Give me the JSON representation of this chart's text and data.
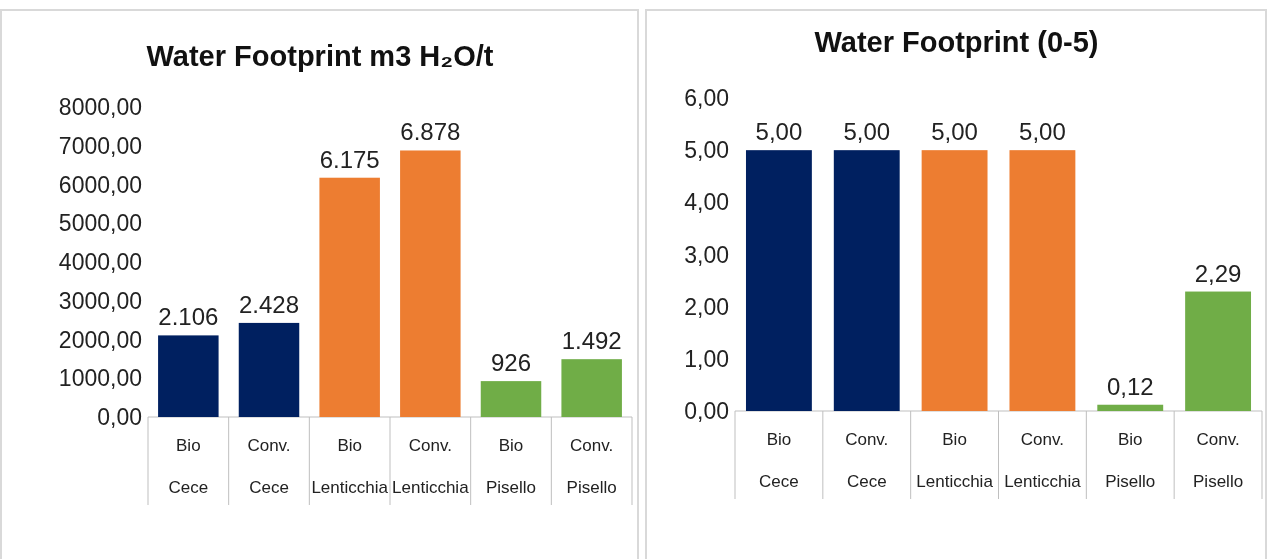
{
  "chart_data": [
    {
      "type": "bar",
      "title": "Water Footprint m3 H₂O/t",
      "categories": [
        "Bio Cece",
        "Conv. Cece",
        "Bio Lenticchia",
        "Conv. Lenticchia",
        "Bio Pisello",
        "Conv. Pisello"
      ],
      "values": [
        2106,
        2428,
        6175,
        6878,
        926,
        1492
      ],
      "colors": [
        "#002060",
        "#002060",
        "#ed7d31",
        "#ed7d31",
        "#70ad47",
        "#70ad47"
      ],
      "value_labels": [
        "2.106",
        "2.428",
        "6.175",
        "6.878",
        "926",
        "1.492"
      ],
      "ylim": [
        0,
        8000
      ],
      "yticks": [
        {
          "value": 0,
          "label": "0,00"
        },
        {
          "value": 1000,
          "label": "1000,00"
        },
        {
          "value": 2000,
          "label": "2000,00"
        },
        {
          "value": 3000,
          "label": "3000,00"
        },
        {
          "value": 4000,
          "label": "4000,00"
        },
        {
          "value": 5000,
          "label": "5000,00"
        },
        {
          "value": 6000,
          "label": "6000,00"
        },
        {
          "value": 7000,
          "label": "7000,00"
        },
        {
          "value": 8000,
          "label": "8000,00"
        }
      ]
    },
    {
      "type": "bar",
      "title": "Water Footprint (0-5)",
      "categories": [
        "Bio Cece",
        "Conv. Cece",
        "Bio Lenticchia",
        "Conv. Lenticchia",
        "Bio Pisello",
        "Conv. Pisello"
      ],
      "values": [
        5,
        5,
        5,
        5,
        0.12,
        2.29
      ],
      "colors": [
        "#002060",
        "#002060",
        "#ed7d31",
        "#ed7d31",
        "#70ad47",
        "#70ad47"
      ],
      "value_labels": [
        "5,00",
        "5,00",
        "5,00",
        "5,00",
        "0,12",
        "2,29"
      ],
      "ylim": [
        0,
        6
      ],
      "yticks": [
        {
          "value": 0,
          "label": "0,00"
        },
        {
          "value": 1,
          "label": "1,00"
        },
        {
          "value": 2,
          "label": "2,00"
        },
        {
          "value": 3,
          "label": "3,00"
        },
        {
          "value": 4,
          "label": "4,00"
        },
        {
          "value": 5,
          "label": "5,00"
        },
        {
          "value": 6,
          "label": "6,00"
        }
      ]
    }
  ]
}
